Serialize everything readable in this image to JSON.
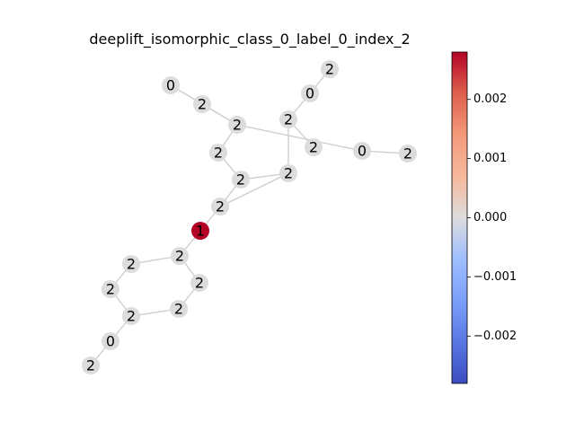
{
  "title": "deeplift_isomorphic_class_0_label_0_index_2",
  "graph": {
    "nodes": [
      {
        "id": 0,
        "label": "2",
        "value": 0.0
      },
      {
        "id": 1,
        "label": "0",
        "value": 0.0
      },
      {
        "id": 2,
        "label": "2",
        "value": 0.0
      },
      {
        "id": 3,
        "label": "0",
        "value": 0.0
      },
      {
        "id": 4,
        "label": "2",
        "value": 0.0
      },
      {
        "id": 5,
        "label": "2",
        "value": 0.0
      },
      {
        "id": 6,
        "label": "2",
        "value": 0.0
      },
      {
        "id": 7,
        "label": "0",
        "value": 0.0
      },
      {
        "id": 8,
        "label": "2",
        "value": 0.0
      },
      {
        "id": 9,
        "label": "2",
        "value": 0.0
      },
      {
        "id": 10,
        "label": "2",
        "value": 0.0
      },
      {
        "id": 11,
        "label": "2",
        "value": 0.0
      },
      {
        "id": 12,
        "label": "2",
        "value": 0.0
      },
      {
        "id": 13,
        "label": "1",
        "value": 0.0028
      },
      {
        "id": 14,
        "label": "2",
        "value": 0.0
      },
      {
        "id": 15,
        "label": "2",
        "value": 0.0
      },
      {
        "id": 16,
        "label": "2",
        "value": 0.0
      },
      {
        "id": 17,
        "label": "2",
        "value": 0.0
      },
      {
        "id": 18,
        "label": "2",
        "value": 0.0
      },
      {
        "id": 19,
        "label": "2",
        "value": 0.0
      },
      {
        "id": 20,
        "label": "0",
        "value": 0.0
      },
      {
        "id": 21,
        "label": "2",
        "value": 0.0
      }
    ],
    "edges": [
      [
        0,
        1
      ],
      [
        1,
        2
      ],
      [
        2,
        4
      ],
      [
        3,
        5
      ],
      [
        3,
        6
      ],
      [
        5,
        6
      ],
      [
        6,
        7
      ],
      [
        7,
        8
      ],
      [
        6,
        9
      ],
      [
        9,
        10
      ],
      [
        10,
        11
      ],
      [
        11,
        12
      ],
      [
        2,
        11
      ],
      [
        10,
        12
      ],
      [
        12,
        13
      ],
      [
        13,
        14
      ],
      [
        14,
        15
      ],
      [
        14,
        16
      ],
      [
        15,
        17
      ],
      [
        16,
        18
      ],
      [
        17,
        19
      ],
      [
        18,
        19
      ],
      [
        19,
        20
      ],
      [
        20,
        21
      ]
    ]
  },
  "colorbar": {
    "colormap": "coolwarm",
    "min": -0.0028,
    "max": 0.0028,
    "ticks": [
      {
        "value": 0.002,
        "label": "0.002"
      },
      {
        "value": 0.001,
        "label": "0.001"
      },
      {
        "value": 0.0,
        "label": "0.000"
      },
      {
        "value": -0.001,
        "label": "−0.001"
      },
      {
        "value": -0.002,
        "label": "−0.002"
      }
    ]
  }
}
